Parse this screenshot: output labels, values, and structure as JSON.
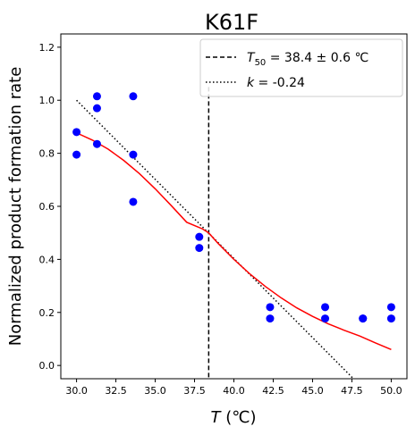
{
  "chart_data": {
    "type": "scatter",
    "title": "K61F",
    "xlabel_italic": "T",
    "xlabel_unit": " (℃)",
    "ylabel": "Normalized product formation rate",
    "xlim": [
      29.0,
      51.0
    ],
    "ylim": [
      -0.05,
      1.25
    ],
    "xticks": [
      30.0,
      32.5,
      35.0,
      37.5,
      40.0,
      42.5,
      45.0,
      47.5,
      50.0
    ],
    "xtick_labels": [
      "30.0",
      "32.5",
      "35.0",
      "37.5",
      "40.0",
      "42.5",
      "45.0",
      "47.5",
      "50.0"
    ],
    "yticks": [
      0.0,
      0.2,
      0.4,
      0.6,
      0.8,
      1.0,
      1.2
    ],
    "ytick_labels": [
      "0.0",
      "0.2",
      "0.4",
      "0.6",
      "0.8",
      "1.0",
      "1.2"
    ],
    "grid": false,
    "legend_position": "top-right",
    "points": [
      {
        "x": 30.0,
        "y": 0.88
      },
      {
        "x": 30.0,
        "y": 0.795
      },
      {
        "x": 31.3,
        "y": 1.015
      },
      {
        "x": 31.3,
        "y": 0.97
      },
      {
        "x": 31.3,
        "y": 0.835
      },
      {
        "x": 33.6,
        "y": 1.015
      },
      {
        "x": 33.6,
        "y": 0.795
      },
      {
        "x": 33.6,
        "y": 0.617
      },
      {
        "x": 37.8,
        "y": 0.485
      },
      {
        "x": 37.8,
        "y": 0.443
      },
      {
        "x": 42.3,
        "y": 0.22
      },
      {
        "x": 42.3,
        "y": 0.177
      },
      {
        "x": 45.8,
        "y": 0.22
      },
      {
        "x": 45.8,
        "y": 0.177
      },
      {
        "x": 48.2,
        "y": 0.177
      },
      {
        "x": 48.2,
        "y": 0.177
      },
      {
        "x": 50.0,
        "y": 0.22
      },
      {
        "x": 50.0,
        "y": 0.177
      }
    ],
    "fit_curve": {
      "x": [
        30.0,
        31.0,
        32.0,
        33.0,
        34.0,
        35.0,
        36.0,
        37.0,
        38.0,
        38.4,
        39.0,
        40.0,
        41.0,
        42.0,
        43.0,
        44.0,
        45.0,
        46.0,
        47.0,
        48.0,
        49.0,
        50.0
      ],
      "y": [
        0.877,
        0.85,
        0.816,
        0.773,
        0.723,
        0.666,
        0.604,
        0.54,
        0.515,
        0.5,
        0.46,
        0.4,
        0.346,
        0.298,
        0.255,
        0.217,
        0.185,
        0.157,
        0.133,
        0.111,
        0.085,
        0.06
      ]
    },
    "t50": {
      "value": 38.4,
      "error": 0.6
    },
    "slope_line": {
      "x": [
        30.0,
        47.6
      ],
      "y": [
        1.0,
        -0.05
      ]
    },
    "colors": {
      "points": "#0000ff",
      "fit": "#ff0000",
      "lines": "#000000"
    },
    "legend": [
      {
        "style": "dashed",
        "prefix": "T",
        "subscript": "50",
        "text": " = 38.4 ± 0.6 ℃"
      },
      {
        "style": "dotted",
        "prefix": "k",
        "subscript": "",
        "text": " = -0.24"
      }
    ]
  }
}
